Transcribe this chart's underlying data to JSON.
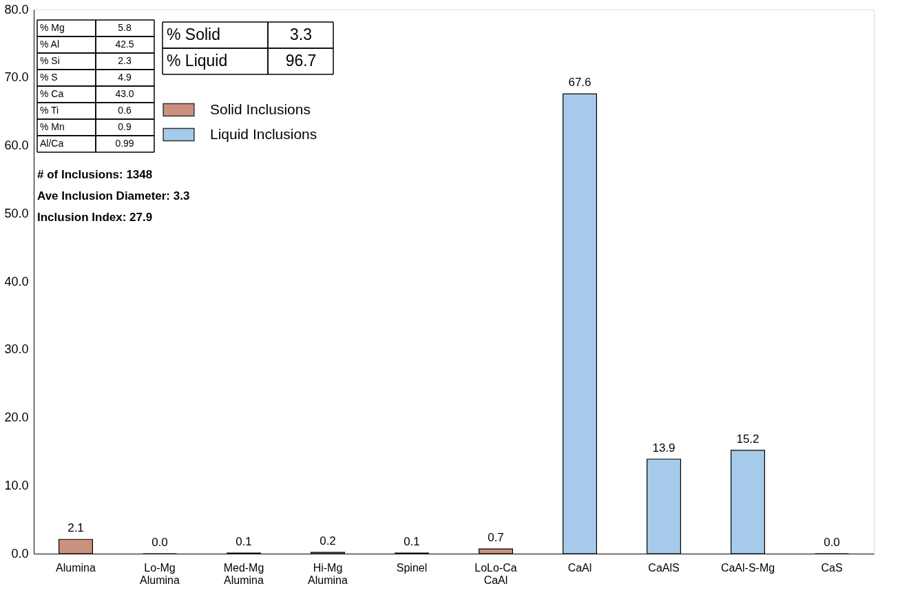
{
  "chart_data": {
    "type": "bar",
    "categories": [
      "Alumina",
      "Lo-Mg Alumina",
      "Med-Mg Alumina",
      "Hi-Mg Alumina",
      "Spinel",
      "LoLo-Ca CaAl",
      "CaAl",
      "CaAlS",
      "CaAl-S-Mg",
      "CaS"
    ],
    "series": [
      {
        "name": "Solid Inclusions",
        "color": "#c9917e",
        "values": [
          2.1,
          0.0,
          0.1,
          0.2,
          0.1,
          0.7,
          null,
          null,
          null,
          null
        ],
        "value_labels": [
          "2.1",
          "0.0",
          "0.1",
          "0.2",
          "0.1",
          "0.7",
          null,
          null,
          null,
          null
        ]
      },
      {
        "name": "Liquid Inclusions",
        "color": "#a6cbea",
        "values": [
          null,
          null,
          null,
          null,
          null,
          null,
          67.6,
          13.9,
          15.2,
          0.0
        ],
        "value_labels": [
          null,
          null,
          null,
          null,
          null,
          null,
          "67.6",
          "13.9",
          "15.2",
          "0.0"
        ]
      }
    ],
    "ylim": [
      0,
      80
    ],
    "yticks": [
      {
        "value": 0,
        "label": "0.0"
      },
      {
        "value": 10,
        "label": "10.0"
      },
      {
        "value": 20,
        "label": "20.0"
      },
      {
        "value": 30,
        "label": "30.0"
      },
      {
        "value": 40,
        "label": "40.0"
      },
      {
        "value": 50,
        "label": "50.0"
      },
      {
        "value": 60,
        "label": "60.0"
      },
      {
        "value": 70,
        "label": "70.0"
      },
      {
        "value": 80,
        "label": "80.0"
      }
    ],
    "grid": false,
    "legend": "top left",
    "annotations": [
      "% Mg",
      "5.8",
      "% Al",
      "42.5",
      "% Si",
      "2.3",
      "% S",
      "4.9",
      "% Ca",
      "43.0",
      "% Ti",
      "0.6",
      "% Mn",
      "0.9",
      "Al/Ca",
      "0.99",
      "% Solid",
      "3.3",
      "% Liquid",
      "96.7",
      "# of Inclusions: 1348",
      "Ave Inclusion Diameter: 3.3",
      "Inclusion Index: 27.9"
    ]
  }
}
